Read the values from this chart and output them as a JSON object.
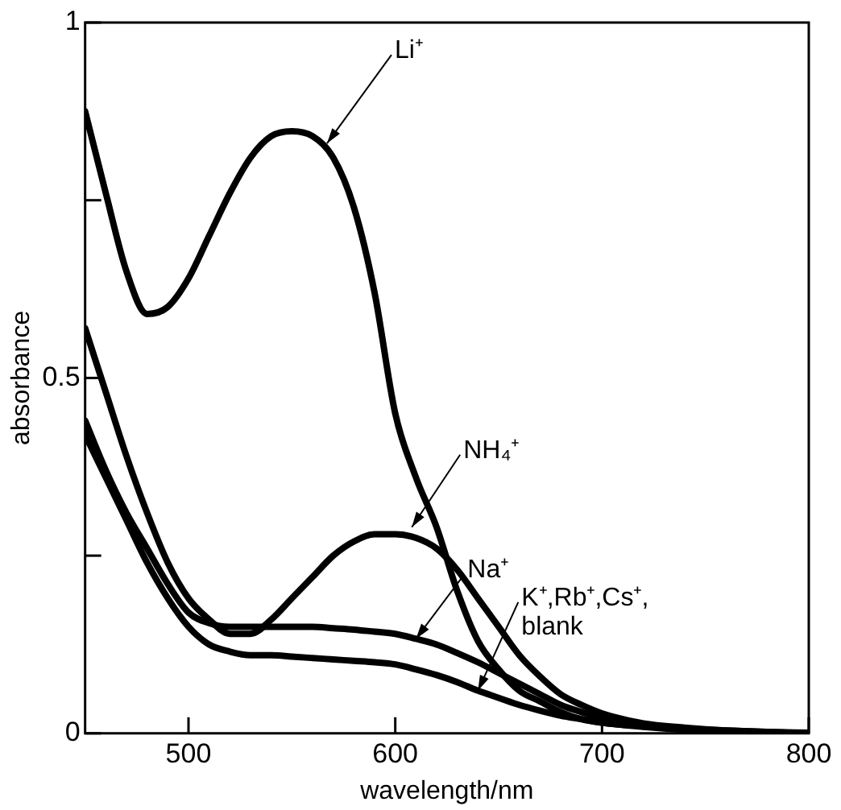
{
  "chart_data": {
    "type": "line",
    "xlabel": "wavelength/nm",
    "ylabel": "absorbance",
    "x": [
      450,
      460,
      470,
      480,
      490,
      500,
      510,
      520,
      530,
      540,
      550,
      560,
      570,
      580,
      590,
      600,
      610,
      620,
      630,
      640,
      650,
      660,
      670,
      680,
      690,
      700,
      720,
      740,
      760,
      780,
      800
    ],
    "series": [
      {
        "color": "#000000",
        "values": [
          0.875,
          0.76,
          0.65,
          0.59,
          0.6,
          0.64,
          0.7,
          0.76,
          0.81,
          0.84,
          0.847,
          0.84,
          0.81,
          0.74,
          0.62,
          0.45,
          0.36,
          0.29,
          0.2,
          0.13,
          0.09,
          0.06,
          0.045,
          0.03,
          0.02,
          0.015,
          0.01,
          0.006,
          0.003,
          0.001,
          0
        ]
      },
      {
        "color": "#000000",
        "values": [
          0.57,
          0.48,
          0.39,
          0.31,
          0.24,
          0.19,
          0.16,
          0.14,
          0.14,
          0.16,
          0.19,
          0.22,
          0.25,
          0.27,
          0.28,
          0.28,
          0.275,
          0.26,
          0.23,
          0.19,
          0.15,
          0.11,
          0.08,
          0.055,
          0.04,
          0.028,
          0.014,
          0.008,
          0.004,
          0.002,
          0
        ]
      },
      {
        "color": "#000000",
        "values": [
          0.44,
          0.37,
          0.31,
          0.26,
          0.21,
          0.17,
          0.155,
          0.15,
          0.15,
          0.15,
          0.15,
          0.15,
          0.148,
          0.146,
          0.143,
          0.14,
          0.133,
          0.125,
          0.113,
          0.1,
          0.085,
          0.07,
          0.055,
          0.04,
          0.03,
          0.022,
          0.012,
          0.007,
          0.004,
          0.002,
          0.001
        ]
      },
      {
        "color": "#000000",
        "values": [
          0.42,
          0.36,
          0.3,
          0.24,
          0.19,
          0.15,
          0.125,
          0.115,
          0.11,
          0.11,
          0.108,
          0.106,
          0.104,
          0.102,
          0.1,
          0.097,
          0.09,
          0.082,
          0.072,
          0.06,
          0.05,
          0.04,
          0.032,
          0.025,
          0.02,
          0.015,
          0.009,
          0.005,
          0.003,
          0.001,
          0
        ]
      }
    ],
    "annotations": [
      {
        "text": "Li⁺",
        "x": 567,
        "y": 0.83
      },
      {
        "text": "NH₄⁺",
        "x": 608,
        "y": 0.29
      },
      {
        "text": "Na⁺",
        "x": 610,
        "y": 0.133
      },
      {
        "text": "K⁺,Rb⁺,Cs⁺,\nblank",
        "x": 640,
        "y": 0.06
      }
    ],
    "xlim": [
      450,
      800
    ],
    "xticks": [
      500,
      600,
      700,
      800
    ],
    "ylim": [
      0,
      1
    ],
    "yticks": [
      0,
      {
        "value": 0.25,
        "label": null
      },
      0.5,
      {
        "value": 0.75,
        "label": null
      },
      1
    ],
    "grid": false,
    "marker": "none",
    "line_style": "solid"
  }
}
